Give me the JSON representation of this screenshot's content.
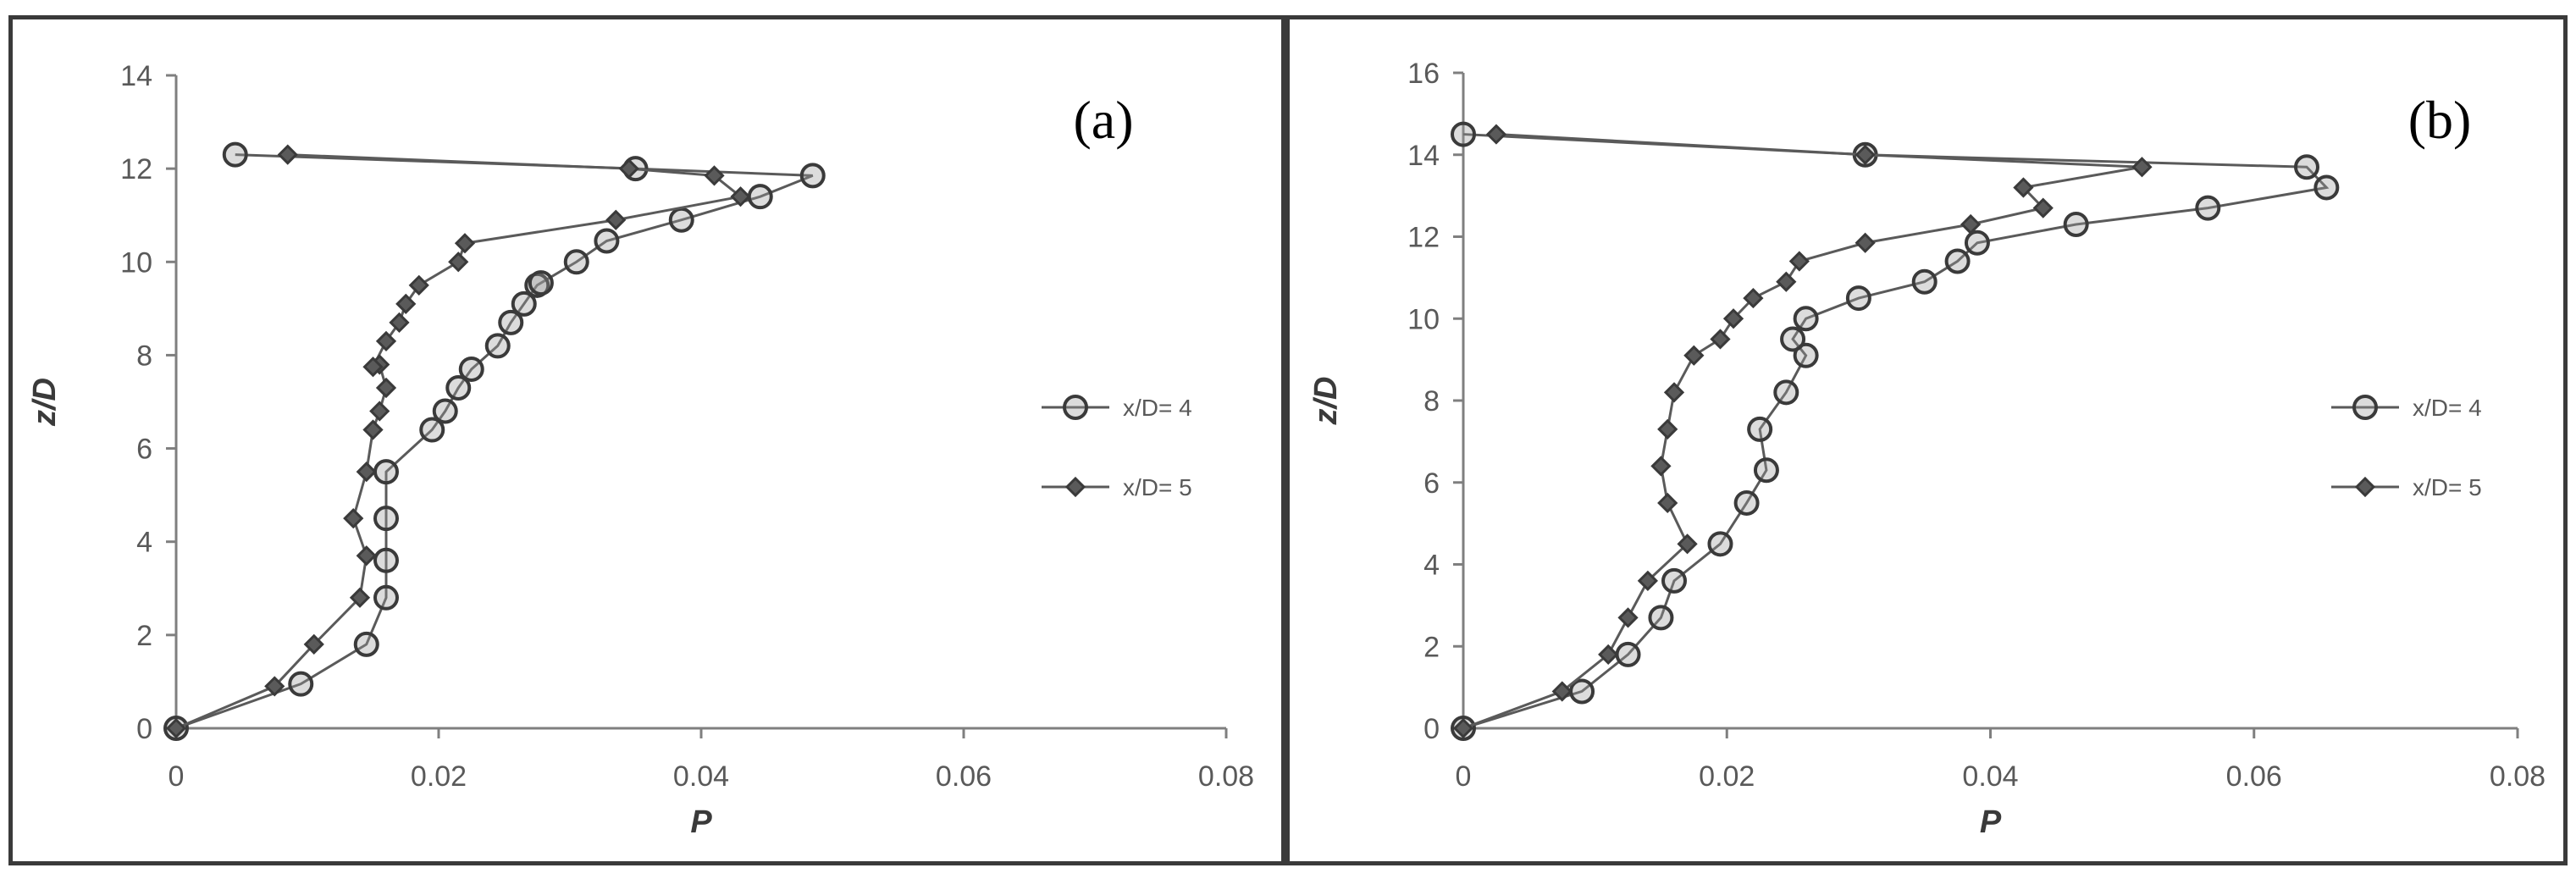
{
  "chart_data": [
    {
      "type": "line",
      "panel_label": "(a)",
      "xlabel": "P",
      "ylabel": "z/D",
      "xlim": [
        0,
        0.08
      ],
      "ylim": [
        0,
        14
      ],
      "x_ticks": [
        "0",
        "0.02",
        "0.04",
        "0.06",
        "0.08"
      ],
      "y_ticks": [
        "0",
        "2",
        "4",
        "6",
        "8",
        "10",
        "12",
        "14"
      ],
      "grid": false,
      "legend_position": "right",
      "series": [
        {
          "name": "x/D= 4",
          "marker": "circle",
          "x": [
            0.0,
            0.0095,
            0.0145,
            0.016,
            0.016,
            0.016,
            0.016,
            0.0195,
            0.0205,
            0.0215,
            0.0225,
            0.0245,
            0.0255,
            0.0265,
            0.0275,
            0.0278,
            0.0305,
            0.0328,
            0.0385,
            0.0445,
            0.0485,
            0.035,
            0.0045
          ],
          "y": [
            0.0,
            0.95,
            1.8,
            2.8,
            3.6,
            4.5,
            5.5,
            6.4,
            6.8,
            7.3,
            7.7,
            8.2,
            8.7,
            9.1,
            9.5,
            9.55,
            10.0,
            10.45,
            10.9,
            11.4,
            11.85,
            12.0,
            12.3
          ]
        },
        {
          "name": "x/D= 5",
          "marker": "diamond",
          "x": [
            0.0,
            0.0075,
            0.0105,
            0.014,
            0.0145,
            0.0135,
            0.0145,
            0.015,
            0.0155,
            0.016,
            0.0155,
            0.015,
            0.016,
            0.017,
            0.0175,
            0.0185,
            0.0215,
            0.022,
            0.0335,
            0.043,
            0.041,
            0.0345,
            0.0085
          ],
          "y": [
            0.0,
            0.9,
            1.8,
            2.8,
            3.7,
            4.5,
            5.5,
            6.4,
            6.8,
            7.3,
            7.8,
            7.75,
            8.3,
            8.7,
            9.1,
            9.5,
            10.0,
            10.4,
            10.9,
            11.4,
            11.85,
            12.0,
            12.3
          ]
        }
      ]
    },
    {
      "type": "line",
      "panel_label": "(b)",
      "xlabel": "P",
      "ylabel": "z/D",
      "xlim": [
        0,
        0.08
      ],
      "ylim": [
        0,
        16
      ],
      "x_ticks": [
        "0",
        "0.02",
        "0.04",
        "0.06",
        "0.08"
      ],
      "y_ticks": [
        "0",
        "2",
        "4",
        "6",
        "8",
        "10",
        "12",
        "14",
        "16"
      ],
      "grid": false,
      "legend_position": "right",
      "series": [
        {
          "name": "x/D= 4",
          "marker": "circle",
          "x": [
            0.0,
            0.009,
            0.0125,
            0.015,
            0.016,
            0.0195,
            0.0215,
            0.023,
            0.0225,
            0.0245,
            0.026,
            0.025,
            0.026,
            0.03,
            0.035,
            0.0375,
            0.039,
            0.0465,
            0.0565,
            0.0655,
            0.064,
            0.0305,
            0.0
          ],
          "y": [
            0.0,
            0.9,
            1.8,
            2.7,
            3.6,
            4.5,
            5.5,
            6.3,
            7.3,
            8.2,
            9.1,
            9.5,
            10.0,
            10.5,
            10.9,
            11.4,
            11.85,
            12.3,
            12.7,
            13.2,
            13.7,
            14.0,
            14.5
          ]
        },
        {
          "name": "x/D= 5",
          "marker": "diamond",
          "x": [
            0.0,
            0.0075,
            0.011,
            0.0125,
            0.014,
            0.017,
            0.0155,
            0.015,
            0.0155,
            0.016,
            0.0175,
            0.0195,
            0.0205,
            0.022,
            0.0245,
            0.0255,
            0.0305,
            0.0385,
            0.044,
            0.0425,
            0.0515,
            0.0305,
            0.0025
          ],
          "y": [
            0.0,
            0.9,
            1.8,
            2.7,
            3.6,
            4.5,
            5.5,
            6.4,
            7.3,
            8.2,
            9.1,
            9.5,
            10.0,
            10.5,
            10.9,
            11.4,
            11.85,
            12.3,
            12.7,
            13.2,
            13.7,
            14.0,
            14.5
          ]
        }
      ]
    }
  ]
}
